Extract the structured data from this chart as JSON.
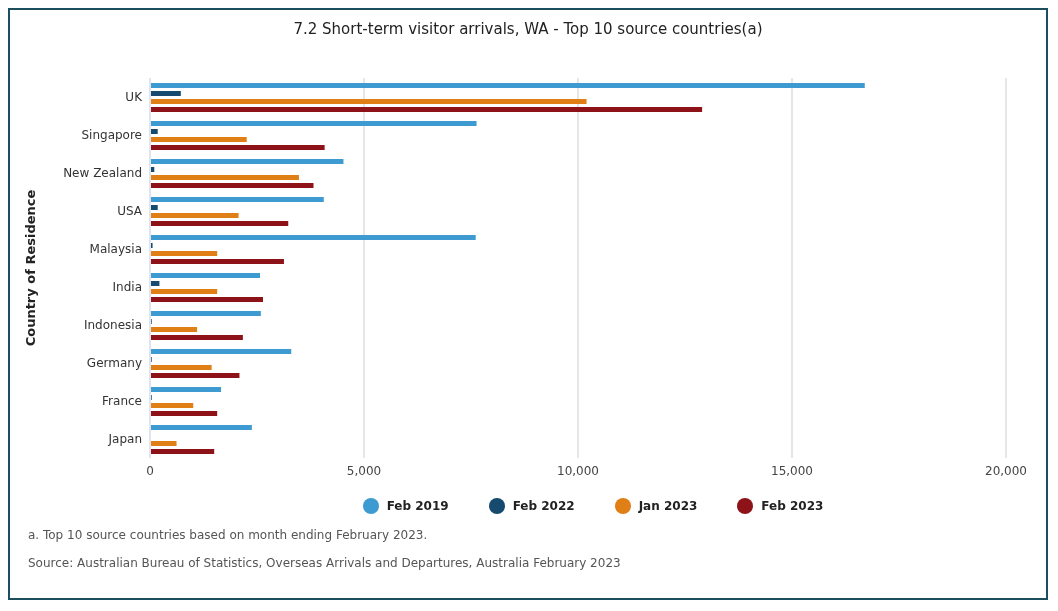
{
  "chart_data": {
    "type": "bar",
    "orientation": "horizontal",
    "title": "7.2 Short-term visitor arrivals, WA - Top 10 source countries(a)",
    "ylabel": "Country of Residence",
    "categories": [
      "UK",
      "Singapore",
      "New Zealand",
      "USA",
      "Malaysia",
      "India",
      "Indonesia",
      "Germany",
      "France",
      "Japan"
    ],
    "series": [
      {
        "name": "Feb 2019",
        "color": "#3d9bd1",
        "values": [
          16700,
          7630,
          4520,
          4060,
          7610,
          2570,
          2590,
          3300,
          1660,
          2380
        ]
      },
      {
        "name": "Feb 2022",
        "color": "#164a6e",
        "values": [
          720,
          180,
          100,
          180,
          60,
          220,
          40,
          40,
          40,
          0
        ]
      },
      {
        "name": "Jan 2023",
        "color": "#e07f16",
        "values": [
          10200,
          2260,
          3480,
          2070,
          1570,
          1570,
          1100,
          1440,
          1010,
          620
        ]
      },
      {
        "name": "Feb 2023",
        "color": "#8e1319",
        "values": [
          12900,
          4080,
          3820,
          3230,
          3130,
          2640,
          2170,
          2090,
          1570,
          1500
        ]
      }
    ],
    "xlim": [
      0,
      20000
    ],
    "xticks": [
      {
        "value": 0,
        "label": "0"
      },
      {
        "value": 5000,
        "label": "5,000"
      },
      {
        "value": 10000,
        "label": "10,000"
      },
      {
        "value": 15000,
        "label": "15,000"
      },
      {
        "value": 20000,
        "label": "20,000"
      }
    ],
    "grid": "x",
    "legend": "bottom",
    "marker": "circle",
    "annotations": [
      "a. Top 10 source countries based on month ending February 2023.",
      "Source: Australian Bureau of Statistics, Overseas Arrivals and Departures, Australia February 2023"
    ]
  }
}
